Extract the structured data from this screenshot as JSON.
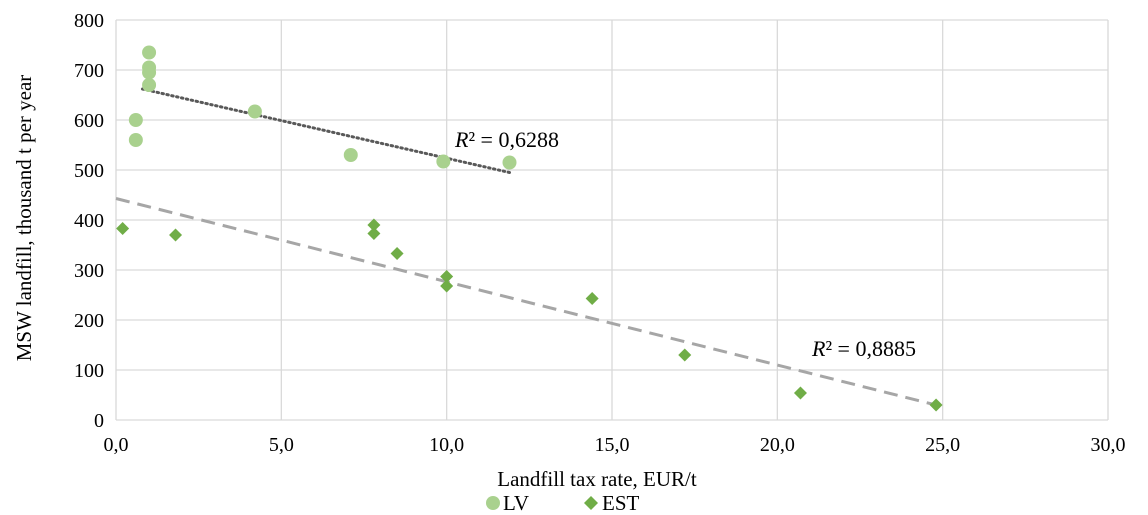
{
  "chart_data": {
    "type": "scatter",
    "xlabel": "Landfill tax rate, EUR/t",
    "ylabel": "MSW landfill, thousand t per year",
    "xlim": [
      0,
      30
    ],
    "ylim": [
      0,
      800
    ],
    "x_ticks": [
      "0,0",
      "5,0",
      "10,0",
      "15,0",
      "20,0",
      "25,0",
      "30,0"
    ],
    "y_ticks": [
      "0",
      "100",
      "200",
      "300",
      "400",
      "500",
      "600",
      "700",
      "800"
    ],
    "grid": true,
    "legend_position": "bottom",
    "series": [
      {
        "name": "LV",
        "marker": "circle",
        "color": "#a9d18e",
        "points": [
          {
            "x": 0.6,
            "y": 600
          },
          {
            "x": 0.6,
            "y": 560
          },
          {
            "x": 1.0,
            "y": 735
          },
          {
            "x": 1.0,
            "y": 705
          },
          {
            "x": 1.0,
            "y": 695
          },
          {
            "x": 1.0,
            "y": 670
          },
          {
            "x": 4.2,
            "y": 617
          },
          {
            "x": 7.1,
            "y": 530
          },
          {
            "x": 9.9,
            "y": 517
          },
          {
            "x": 11.9,
            "y": 515
          }
        ],
        "trendline": {
          "x": [
            0.8,
            11.9
          ],
          "y": [
            662,
            495
          ],
          "style": "dotted",
          "color": "#595959",
          "r2_label": "R² = 0,6288"
        }
      },
      {
        "name": "EST",
        "marker": "diamond",
        "color": "#70ad47",
        "points": [
          {
            "x": 0.2,
            "y": 383
          },
          {
            "x": 1.8,
            "y": 370
          },
          {
            "x": 7.8,
            "y": 390
          },
          {
            "x": 7.8,
            "y": 373
          },
          {
            "x": 8.5,
            "y": 333
          },
          {
            "x": 10.0,
            "y": 287
          },
          {
            "x": 10.0,
            "y": 268
          },
          {
            "x": 14.4,
            "y": 243
          },
          {
            "x": 17.2,
            "y": 130
          },
          {
            "x": 20.7,
            "y": 54
          },
          {
            "x": 24.8,
            "y": 30
          }
        ],
        "trendline": {
          "x": [
            0,
            24.8
          ],
          "y": [
            443,
            30
          ],
          "style": "dashed",
          "color": "#a6a6a6",
          "r2_label": "R² = 0,8885"
        }
      }
    ]
  }
}
